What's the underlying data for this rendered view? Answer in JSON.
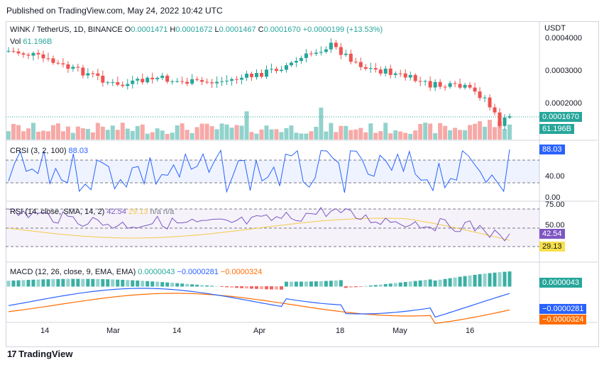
{
  "published": "Published on TradingView.com, May 24, 2022 10:42 UTC",
  "symbol": {
    "name": "WINK / TetherUS, 1D, BINANCE",
    "o_label": "O",
    "o": "0.0001471",
    "h_label": "H",
    "h": "0.0001672",
    "l_label": "L",
    "l": "0.0001467",
    "c_label": "C",
    "c": "0.0001670",
    "change": "+0.0000199 (+13.53%)"
  },
  "volume": {
    "label": "Vol",
    "value": "61.196B"
  },
  "currency": "USDT",
  "price_axis": [
    "0.0004000",
    "0.0003000",
    "0.0002000"
  ],
  "last_price": "0.0001670",
  "last_volume": "61.196B",
  "crsi": {
    "label": "CRSI (3, 2, 100)",
    "value": "88.03",
    "axis": [
      "40.00",
      "0.00"
    ]
  },
  "rsi": {
    "label": "RSI (14, close, SMA, 14, 2)",
    "value": "42.54",
    "sma": "29.13",
    "na1": "n/a",
    "na2": "n/a",
    "axis": [
      "75.00",
      "50.00"
    ]
  },
  "macd": {
    "label": "MACD (12, 26, close, 9, EMA, EMA)",
    "hist": "0.0000043",
    "macd": "−0.0000281",
    "signal": "−0.0000324"
  },
  "x_axis": [
    "14",
    "Mar",
    "14",
    "Apr",
    "18",
    "May",
    "16"
  ],
  "footer": "TradingView",
  "colors": {
    "up": "#26a69a",
    "down": "#ef5350",
    "macd": "#2962ff",
    "signal": "#ff6d00",
    "rsi": "#7e57c2",
    "rsi_ma": "#f7c948",
    "crsi": "#2962ff"
  }
}
